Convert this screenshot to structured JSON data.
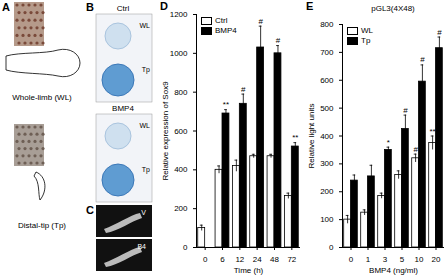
{
  "chart_data": [
    {
      "panel_label": "D",
      "type": "bar",
      "x_label": "Time (h)",
      "y_label": "Relative expression of Sox9",
      "categories": [
        "0",
        "6",
        "12",
        "24",
        "48",
        "72"
      ],
      "series": [
        {
          "name": "Ctrl",
          "color": "#ffffff",
          "values": [
            100,
            400,
            420,
            470,
            470,
            265
          ],
          "errors": [
            15,
            20,
            30,
            10,
            10,
            15
          ]
        },
        {
          "name": "BMP4",
          "color": "#000000",
          "values": [
            null,
            690,
            740,
            1030,
            1000,
            520
          ],
          "errors": [
            null,
            20,
            50,
            110,
            40,
            20
          ],
          "annotations": [
            null,
            "**",
            "#",
            "#",
            "#",
            "**"
          ]
        }
      ],
      "ylim": [
        0,
        1200
      ],
      "yticks": [
        0,
        200,
        400,
        600,
        800,
        1000,
        1200
      ],
      "legend": "top-left"
    },
    {
      "panel_label": "E",
      "type": "bar",
      "title": "pGL3(4X48)",
      "x_label": "BMP4 (ng/ml)",
      "y_label": "Relative light units",
      "categories": [
        "0",
        "1",
        "3",
        "5",
        "10",
        "20"
      ],
      "series": [
        {
          "name": "WL",
          "color": "#ffffff",
          "values": [
            100,
            125,
            185,
            260,
            320,
            375
          ],
          "errors": [
            15,
            10,
            10,
            15,
            15,
            25
          ],
          "annotations": [
            null,
            null,
            null,
            null,
            "#",
            "**"
          ]
        },
        {
          "name": "Tp",
          "color": "#000000",
          "values": [
            240,
            255,
            350,
            425,
            595,
            715
          ],
          "errors": [
            20,
            40,
            10,
            50,
            60,
            40
          ],
          "annotations": [
            null,
            null,
            "*",
            "#",
            "#",
            "#"
          ]
        }
      ],
      "ylim": [
        0,
        800
      ],
      "yticks": [
        0,
        100,
        200,
        300,
        400,
        500,
        600,
        700,
        800
      ],
      "legend": "top-left"
    }
  ],
  "figure": {
    "A": {
      "label": "A",
      "texts": [
        "Whole-limb (WL)",
        "Distal-tip (Tp)"
      ]
    },
    "B": {
      "label": "B",
      "groups": [
        {
          "title": "Ctrl",
          "items": [
            "WL",
            "Tp"
          ]
        },
        {
          "title": "BMP4",
          "items": [
            "WL",
            "Tp"
          ]
        }
      ]
    },
    "C": {
      "label": "C",
      "items": [
        "V",
        "B4"
      ]
    }
  }
}
